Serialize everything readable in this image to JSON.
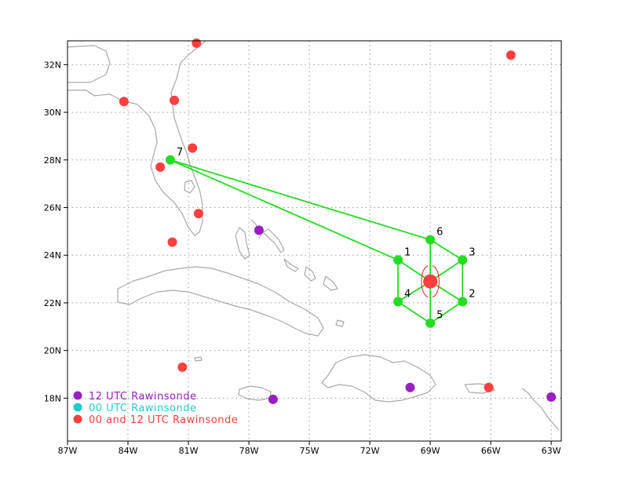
{
  "map": {
    "lon_range": [
      -87,
      -62.5
    ],
    "lat_range": [
      16.2,
      33
    ],
    "x_ticks": [
      {
        "lon": -87,
        "label": "87W"
      },
      {
        "lon": -84,
        "label": "84W"
      },
      {
        "lon": -81,
        "label": "81W"
      },
      {
        "lon": -78,
        "label": "78W"
      },
      {
        "lon": -75,
        "label": "75W"
      },
      {
        "lon": -72,
        "label": "72W"
      },
      {
        "lon": -69,
        "label": "69W"
      },
      {
        "lon": -66,
        "label": "66W"
      },
      {
        "lon": -63,
        "label": "63W"
      }
    ],
    "y_ticks": [
      {
        "lat": 18,
        "label": "18N"
      },
      {
        "lat": 20,
        "label": "20N"
      },
      {
        "lat": 22,
        "label": "22N"
      },
      {
        "lat": 24,
        "label": "24N"
      },
      {
        "lat": 26,
        "label": "26N"
      },
      {
        "lat": 28,
        "label": "28N"
      },
      {
        "lat": 30,
        "label": "30N"
      },
      {
        "lat": 32,
        "label": "32N"
      }
    ],
    "grid": true,
    "colors": {
      "track": "#22dd22",
      "red": "#ff3f3f",
      "purple": "#9a1fc0",
      "cyan": "#22cccc",
      "coast": "#a8a8a8",
      "storm_outline": "#dd2222"
    }
  },
  "track_points": [
    {
      "label": "1",
      "lon": -70.6,
      "lat": 23.8
    },
    {
      "label": "2",
      "lon": -67.4,
      "lat": 22.05
    },
    {
      "label": "3",
      "lon": -67.4,
      "lat": 23.8
    },
    {
      "label": "4",
      "lon": -70.6,
      "lat": 22.05
    },
    {
      "label": "5",
      "lon": -69.0,
      "lat": 21.15
    },
    {
      "label": "6",
      "lon": -69.0,
      "lat": 24.65
    },
    {
      "label": "7",
      "lon": -81.9,
      "lat": 28.0
    }
  ],
  "track_path_order": [
    "7",
    "1",
    "4",
    "5",
    "2",
    "3",
    "6",
    "7"
  ],
  "storm_center": {
    "lon": -69.0,
    "lat": 22.9
  },
  "rawinsondes": {
    "red": [
      {
        "lon": -80.6,
        "lat": 32.9
      },
      {
        "lon": -65.0,
        "lat": 32.4
      },
      {
        "lon": -84.2,
        "lat": 30.45
      },
      {
        "lon": -81.7,
        "lat": 30.5
      },
      {
        "lon": -80.8,
        "lat": 28.5
      },
      {
        "lon": -82.4,
        "lat": 27.7
      },
      {
        "lon": -80.5,
        "lat": 25.75
      },
      {
        "lon": -81.8,
        "lat": 24.55
      },
      {
        "lon": -81.3,
        "lat": 19.3
      },
      {
        "lon": -66.1,
        "lat": 18.45
      }
    ],
    "purple": [
      {
        "lon": -77.5,
        "lat": 25.05
      },
      {
        "lon": -76.8,
        "lat": 17.95
      },
      {
        "lon": -70.0,
        "lat": 18.45
      },
      {
        "lon": -63.0,
        "lat": 18.05
      }
    ]
  },
  "legend": {
    "items": [
      {
        "label": "12 UTC Rawinsonde",
        "color": "#9a1fc0"
      },
      {
        "label": "00 UTC Rawinsonde",
        "color": "#22cccc"
      },
      {
        "label": "00 and 12 UTC Rawinsonde",
        "color": "#ff3f3f"
      }
    ]
  }
}
